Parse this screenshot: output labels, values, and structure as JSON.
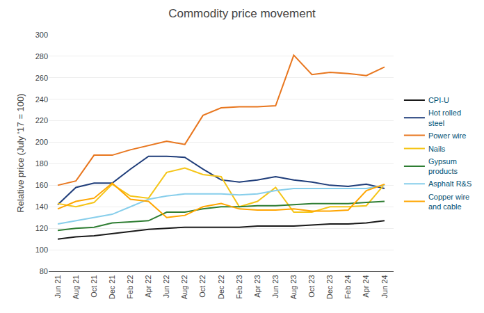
{
  "chart_data": {
    "type": "line",
    "title": "Commodity price movement",
    "ylabel": "Relative price (July '17 = 100)",
    "categories": [
      "Jun 21",
      "Aug 21",
      "Oct 21",
      "Dec 21",
      "Feb 22",
      "Apr 22",
      "Jun 22",
      "Aug 22",
      "Oct 22",
      "Dec 22",
      "Feb 23",
      "Apr 23",
      "Jun 23",
      "Aug 23",
      "Oct 23",
      "Dec 23",
      "Feb 24",
      "Apr 24",
      "Jun 24"
    ],
    "series": [
      {
        "name": "CPI-U",
        "color": "#1a1a1a",
        "values": [
          110,
          112,
          113,
          115,
          117,
          119,
          120,
          121,
          121,
          121,
          121,
          122,
          122,
          122,
          123,
          124,
          124,
          125,
          127
        ]
      },
      {
        "name": "Hot rolled\nsteel",
        "color": "#1f3d7a",
        "values": [
          142,
          158,
          162,
          162,
          175,
          187,
          187,
          186,
          175,
          165,
          163,
          165,
          168,
          165,
          163,
          160,
          159,
          161,
          157
        ]
      },
      {
        "name": "Power wire",
        "color": "#e8761e",
        "values": [
          160,
          164,
          188,
          188,
          193,
          197,
          201,
          198,
          225,
          232,
          233,
          233,
          234,
          281,
          263,
          265,
          264,
          262,
          270
        ]
      },
      {
        "name": "Nails",
        "color": "#f5c518",
        "values": [
          143,
          140,
          144,
          161,
          150,
          148,
          172,
          176,
          170,
          168,
          140,
          145,
          158,
          135,
          135,
          140,
          140,
          141,
          161
        ]
      },
      {
        "name": "Gypsum\nproducts",
        "color": "#2e7d32",
        "values": [
          118,
          120,
          121,
          125,
          126,
          127,
          135,
          135,
          138,
          140,
          140,
          141,
          141,
          142,
          143,
          143,
          143,
          144,
          145
        ]
      },
      {
        "name": "Asphalt R&S",
        "color": "#87ceeb",
        "values": [
          124,
          127,
          130,
          133,
          140,
          147,
          150,
          152,
          152,
          152,
          151,
          152,
          155,
          157,
          157,
          157,
          157,
          157,
          160
        ]
      },
      {
        "name": "Copper wire\nand cable",
        "color": "#ffa500",
        "values": [
          138,
          145,
          148,
          162,
          147,
          145,
          130,
          132,
          140,
          143,
          138,
          137,
          137,
          138,
          136,
          136,
          137,
          155,
          161
        ]
      }
    ],
    "ylim": [
      80,
      300
    ],
    "yticks": [
      80,
      100,
      120,
      140,
      160,
      180,
      200,
      220,
      240,
      260,
      280,
      300
    ],
    "grid": true,
    "legend": "right"
  }
}
